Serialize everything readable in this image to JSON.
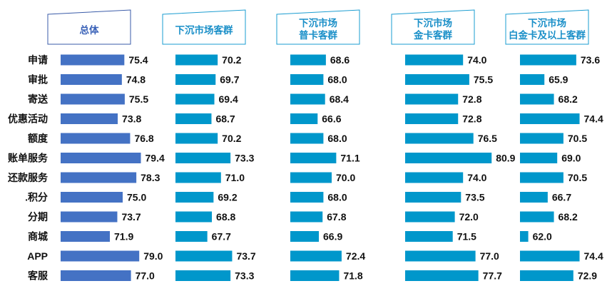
{
  "chart_data": {
    "type": "bar",
    "orientation": "horizontal",
    "categories": [
      "申请",
      "审批",
      "寄送",
      "优惠活动",
      "额度",
      "账单服务",
      "还款服务",
      ".积分",
      "分期",
      "商城",
      "APP",
      "客服"
    ],
    "xlim": [
      60,
      82
    ],
    "series": [
      {
        "name": "总体",
        "title_lines": [
          "总体"
        ],
        "color": "#4472C4",
        "values": [
          75.4,
          74.8,
          75.5,
          73.8,
          76.8,
          79.4,
          78.3,
          75.0,
          73.7,
          71.9,
          79.0,
          77.0
        ]
      },
      {
        "name": "下沉市场客群",
        "title_lines": [
          "下沉市场客群"
        ],
        "color": "#0097CB",
        "values": [
          70.2,
          69.7,
          69.4,
          68.7,
          70.2,
          73.3,
          71.0,
          69.2,
          68.8,
          67.7,
          73.7,
          73.3
        ]
      },
      {
        "name": "下沉市场普卡客群",
        "title_lines": [
          "下沉市场",
          "普卡客群"
        ],
        "color": "#0097CB",
        "values": [
          68.6,
          68.0,
          68.4,
          66.6,
          68.0,
          71.1,
          70.0,
          68.0,
          67.8,
          66.9,
          72.4,
          71.8
        ]
      },
      {
        "name": "下沉市场金卡客群",
        "title_lines": [
          "下沉市场",
          "金卡客群"
        ],
        "color": "#0097CB",
        "values": [
          74.0,
          75.5,
          72.8,
          72.8,
          76.5,
          80.9,
          74.0,
          73.5,
          72.0,
          71.5,
          77.0,
          77.7
        ]
      },
      {
        "name": "下沉市场白金卡及以上客群",
        "title_lines": [
          "下沉市场",
          "白金卡及以上客群"
        ],
        "color": "#0097CB",
        "values": [
          73.6,
          65.9,
          68.2,
          74.4,
          70.5,
          69.0,
          70.5,
          66.7,
          68.2,
          62.0,
          74.4,
          72.9
        ]
      }
    ]
  }
}
